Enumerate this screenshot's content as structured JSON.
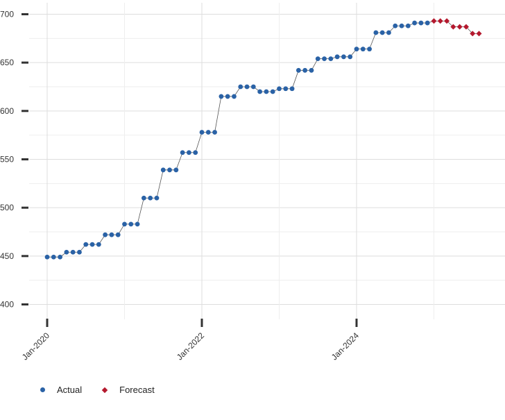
{
  "chart_data": {
    "type": "line",
    "title": "",
    "xlabel": "",
    "ylabel": "",
    "ylim": [
      400,
      700
    ],
    "y_ticks": [
      400,
      450,
      500,
      550,
      600,
      650,
      700
    ],
    "x_ticks": [
      {
        "label": "Jan-2020",
        "date": "2020-01"
      },
      {
        "label": "Jan-2022",
        "date": "2022-01"
      },
      {
        "label": "Jan-2024",
        "date": "2024-01"
      }
    ],
    "grid": true,
    "legend_position": "bottom-left",
    "colors": {
      "actual": "#2a62a6",
      "forecast": "#b4192e",
      "line": "#555555",
      "grid": "#dddddd"
    },
    "series": [
      {
        "name": "Actual",
        "marker": "circle",
        "points": [
          [
            "2020-01",
            449
          ],
          [
            "2020-02",
            449
          ],
          [
            "2020-03",
            449
          ],
          [
            "2020-04",
            454
          ],
          [
            "2020-05",
            454
          ],
          [
            "2020-06",
            454
          ],
          [
            "2020-07",
            462
          ],
          [
            "2020-08",
            462
          ],
          [
            "2020-09",
            462
          ],
          [
            "2020-10",
            472
          ],
          [
            "2020-11",
            472
          ],
          [
            "2020-12",
            472
          ],
          [
            "2021-01",
            483
          ],
          [
            "2021-02",
            483
          ],
          [
            "2021-03",
            483
          ],
          [
            "2021-04",
            510
          ],
          [
            "2021-05",
            510
          ],
          [
            "2021-06",
            510
          ],
          [
            "2021-07",
            539
          ],
          [
            "2021-08",
            539
          ],
          [
            "2021-09",
            539
          ],
          [
            "2021-10",
            557
          ],
          [
            "2021-11",
            557
          ],
          [
            "2021-12",
            557
          ],
          [
            "2022-01",
            578
          ],
          [
            "2022-02",
            578
          ],
          [
            "2022-03",
            578
          ],
          [
            "2022-04",
            615
          ],
          [
            "2022-05",
            615
          ],
          [
            "2022-06",
            615
          ],
          [
            "2022-07",
            625
          ],
          [
            "2022-08",
            625
          ],
          [
            "2022-09",
            625
          ],
          [
            "2022-10",
            620
          ],
          [
            "2022-11",
            620
          ],
          [
            "2022-12",
            620
          ],
          [
            "2023-01",
            623
          ],
          [
            "2023-02",
            623
          ],
          [
            "2023-03",
            623
          ],
          [
            "2023-04",
            642
          ],
          [
            "2023-05",
            642
          ],
          [
            "2023-06",
            642
          ],
          [
            "2023-07",
            654
          ],
          [
            "2023-08",
            654
          ],
          [
            "2023-09",
            654
          ],
          [
            "2023-10",
            656
          ],
          [
            "2023-11",
            656
          ],
          [
            "2023-12",
            656
          ],
          [
            "2024-01",
            664
          ],
          [
            "2024-02",
            664
          ],
          [
            "2024-03",
            664
          ],
          [
            "2024-04",
            681
          ],
          [
            "2024-05",
            681
          ],
          [
            "2024-06",
            681
          ],
          [
            "2024-07",
            688
          ],
          [
            "2024-08",
            688
          ],
          [
            "2024-09",
            688
          ],
          [
            "2024-10",
            691
          ],
          [
            "2024-11",
            691
          ],
          [
            "2024-12",
            691
          ]
        ]
      },
      {
        "name": "Forecast",
        "marker": "diamond",
        "points": [
          [
            "2025-01",
            693
          ],
          [
            "2025-02",
            693
          ],
          [
            "2025-03",
            693
          ],
          [
            "2025-04",
            687
          ],
          [
            "2025-05",
            687
          ],
          [
            "2025-06",
            687
          ],
          [
            "2025-07",
            680
          ],
          [
            "2025-08",
            680
          ]
        ]
      }
    ]
  }
}
